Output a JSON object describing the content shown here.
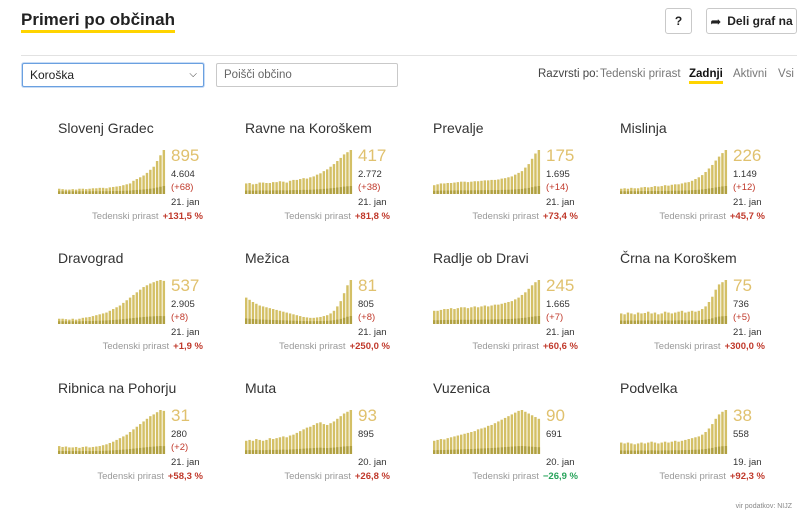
{
  "header": {
    "title": "Primeri po občinah",
    "help_label": "?",
    "share_label": "Deli graf na"
  },
  "filters": {
    "region_value": "Koroška",
    "search_placeholder": "Poišči občino"
  },
  "sort": {
    "label": "Razvrsti po:",
    "options": [
      "Tedenski prirast",
      "Zadnji",
      "Aktivni",
      "Vsi"
    ],
    "active": "Zadnji"
  },
  "colors": {
    "accent": "#ffd400",
    "bar_fill": "#d4c066",
    "bar_dark": "#b0a040",
    "value_text": "#e0c16e",
    "up": "#c0392b",
    "down": "#27a35a"
  },
  "growth_label": "Tedenski prirast",
  "municipalities": [
    {
      "name": "Slovenj Gradec",
      "active": "895",
      "total": "4.604",
      "change": "(+68)",
      "date": "21. jan",
      "growth": "+131,5 %",
      "trend": "up",
      "bars": [
        0.12,
        0.11,
        0.1,
        0.1,
        0.11,
        0.1,
        0.12,
        0.12,
        0.11,
        0.12,
        0.13,
        0.13,
        0.14,
        0.14,
        0.13,
        0.15,
        0.16,
        0.17,
        0.18,
        0.2,
        0.22,
        0.24,
        0.3,
        0.34,
        0.38,
        0.42,
        0.48,
        0.55,
        0.62,
        0.75,
        0.88,
        1.0
      ]
    },
    {
      "name": "Ravne na Koroškem",
      "active": "417",
      "total": "2.772",
      "change": "(+38)",
      "date": "21. jan",
      "growth": "+81,8 %",
      "trend": "up",
      "bars": [
        0.24,
        0.25,
        0.22,
        0.23,
        0.26,
        0.26,
        0.25,
        0.25,
        0.27,
        0.27,
        0.29,
        0.28,
        0.26,
        0.3,
        0.32,
        0.32,
        0.34,
        0.36,
        0.35,
        0.38,
        0.4,
        0.44,
        0.47,
        0.52,
        0.56,
        0.62,
        0.68,
        0.75,
        0.82,
        0.9,
        0.95,
        1.0
      ]
    },
    {
      "name": "Prevalje",
      "active": "175",
      "total": "1.695",
      "change": "(+14)",
      "date": "21. jan",
      "growth": "+73,4 %",
      "trend": "up",
      "bars": [
        0.2,
        0.22,
        0.24,
        0.24,
        0.25,
        0.25,
        0.26,
        0.27,
        0.28,
        0.28,
        0.27,
        0.28,
        0.29,
        0.29,
        0.3,
        0.31,
        0.31,
        0.32,
        0.32,
        0.33,
        0.35,
        0.36,
        0.38,
        0.4,
        0.44,
        0.48,
        0.52,
        0.6,
        0.68,
        0.8,
        0.92,
        1.0
      ]
    },
    {
      "name": "Mislinja",
      "active": "226",
      "total": "1.149",
      "change": "(+12)",
      "date": "21. jan",
      "growth": "+45,7 %",
      "trend": "up",
      "bars": [
        0.12,
        0.13,
        0.12,
        0.14,
        0.13,
        0.13,
        0.15,
        0.16,
        0.15,
        0.16,
        0.18,
        0.17,
        0.18,
        0.2,
        0.19,
        0.21,
        0.22,
        0.22,
        0.24,
        0.26,
        0.27,
        0.3,
        0.34,
        0.38,
        0.43,
        0.5,
        0.58,
        0.66,
        0.76,
        0.85,
        0.93,
        1.0
      ]
    },
    {
      "name": "Dravograd",
      "active": "537",
      "total": "2.905",
      "change": "(+8)",
      "date": "21. jan",
      "growth": "+1,9 %",
      "trend": "up",
      "bars": [
        0.12,
        0.12,
        0.11,
        0.1,
        0.12,
        0.1,
        0.12,
        0.14,
        0.15,
        0.16,
        0.18,
        0.2,
        0.22,
        0.24,
        0.26,
        0.3,
        0.34,
        0.38,
        0.42,
        0.48,
        0.54,
        0.6,
        0.66,
        0.72,
        0.78,
        0.84,
        0.88,
        0.92,
        0.95,
        0.98,
        1.0,
        0.98
      ]
    },
    {
      "name": "Mežica",
      "active": "81",
      "total": "805",
      "change": "(+8)",
      "date": "21. jan",
      "growth": "+250,0 %",
      "trend": "up",
      "bars": [
        0.6,
        0.55,
        0.5,
        0.46,
        0.42,
        0.4,
        0.38,
        0.36,
        0.34,
        0.32,
        0.3,
        0.28,
        0.26,
        0.24,
        0.22,
        0.2,
        0.18,
        0.16,
        0.15,
        0.14,
        0.14,
        0.15,
        0.16,
        0.18,
        0.2,
        0.24,
        0.3,
        0.4,
        0.52,
        0.7,
        0.88,
        1.0
      ]
    },
    {
      "name": "Radlje ob Dravi",
      "active": "245",
      "total": "1.665",
      "change": "(+7)",
      "date": "21. jan",
      "growth": "+60,6 %",
      "trend": "up",
      "bars": [
        0.3,
        0.3,
        0.32,
        0.34,
        0.34,
        0.36,
        0.34,
        0.36,
        0.38,
        0.38,
        0.36,
        0.38,
        0.4,
        0.38,
        0.4,
        0.42,
        0.4,
        0.42,
        0.44,
        0.44,
        0.46,
        0.48,
        0.5,
        0.52,
        0.56,
        0.6,
        0.66,
        0.72,
        0.8,
        0.88,
        0.95,
        1.0
      ]
    },
    {
      "name": "Črna na Koroškem",
      "active": "75",
      "total": "736",
      "change": "(+5)",
      "date": "21. jan",
      "growth": "+300,0 %",
      "trend": "up",
      "bars": [
        0.24,
        0.22,
        0.26,
        0.24,
        0.22,
        0.26,
        0.24,
        0.25,
        0.28,
        0.24,
        0.26,
        0.22,
        0.24,
        0.28,
        0.26,
        0.24,
        0.26,
        0.28,
        0.3,
        0.26,
        0.28,
        0.3,
        0.28,
        0.3,
        0.34,
        0.4,
        0.5,
        0.62,
        0.78,
        0.9,
        0.95,
        1.0
      ]
    },
    {
      "name": "Ribnica na Pohorju",
      "active": "31",
      "total": "280",
      "change": "(+2)",
      "date": "21. jan",
      "growth": "+58,3 %",
      "trend": "up",
      "bars": [
        0.18,
        0.16,
        0.17,
        0.15,
        0.15,
        0.16,
        0.14,
        0.16,
        0.17,
        0.15,
        0.16,
        0.17,
        0.18,
        0.2,
        0.22,
        0.25,
        0.28,
        0.32,
        0.36,
        0.4,
        0.44,
        0.5,
        0.56,
        0.62,
        0.68,
        0.74,
        0.8,
        0.86,
        0.9,
        0.95,
        1.0,
        0.98
      ]
    },
    {
      "name": "Muta",
      "active": "93",
      "total": "895",
      "change": "",
      "date": "20. jan",
      "growth": "+26,8 %",
      "trend": "up",
      "bars": [
        0.3,
        0.32,
        0.3,
        0.34,
        0.32,
        0.3,
        0.32,
        0.36,
        0.34,
        0.36,
        0.38,
        0.4,
        0.38,
        0.42,
        0.44,
        0.48,
        0.52,
        0.56,
        0.6,
        0.62,
        0.66,
        0.7,
        0.72,
        0.68,
        0.66,
        0.7,
        0.74,
        0.8,
        0.86,
        0.92,
        0.96,
        1.0
      ]
    },
    {
      "name": "Vuzenica",
      "active": "90",
      "total": "691",
      "change": "",
      "date": "20. jan",
      "growth": "−26,9 %",
      "trend": "down",
      "bars": [
        0.3,
        0.32,
        0.34,
        0.33,
        0.36,
        0.38,
        0.4,
        0.42,
        0.44,
        0.46,
        0.48,
        0.5,
        0.52,
        0.56,
        0.58,
        0.6,
        0.64,
        0.66,
        0.7,
        0.74,
        0.78,
        0.82,
        0.86,
        0.9,
        0.94,
        0.98,
        1.0,
        0.96,
        0.92,
        0.88,
        0.84,
        0.8
      ]
    },
    {
      "name": "Podvelka",
      "active": "38",
      "total": "558",
      "change": "",
      "date": "19. jan",
      "growth": "+92,3 %",
      "trend": "up",
      "bars": [
        0.26,
        0.24,
        0.26,
        0.24,
        0.22,
        0.24,
        0.26,
        0.24,
        0.26,
        0.28,
        0.26,
        0.24,
        0.26,
        0.28,
        0.26,
        0.28,
        0.3,
        0.28,
        0.3,
        0.32,
        0.34,
        0.36,
        0.38,
        0.4,
        0.44,
        0.5,
        0.58,
        0.68,
        0.8,
        0.9,
        0.96,
        1.0
      ]
    }
  ],
  "source": "vir podatkov: NIJZ"
}
